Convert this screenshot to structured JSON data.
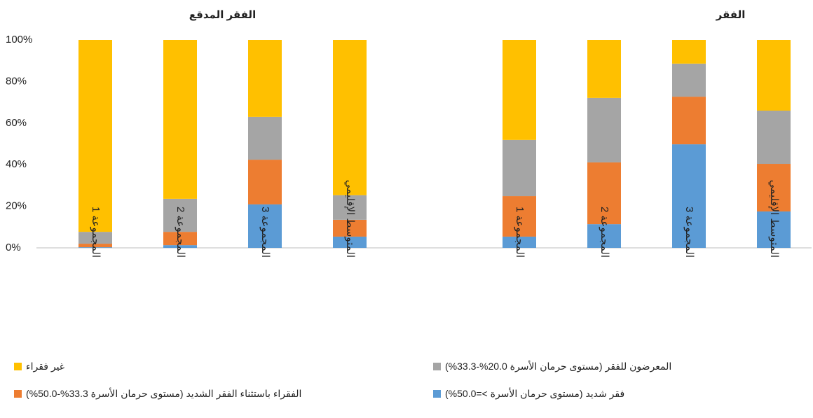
{
  "chart_data": [
    {
      "type": "stacked_bar",
      "title": "الفقر المدقع",
      "categories": [
        "المجموعة 1",
        "المجموعة 2",
        "المجموعة 3",
        "المتوسط الإقليمي"
      ],
      "series": [
        {
          "name": "فقر شديد (مستوى حرمان الأسرة >=50.0%)",
          "color": "#5b9bd5",
          "values": [
            0.3,
            1.3,
            20.9,
            5.4
          ]
        },
        {
          "name": "الفقراء باستثناء الفقر الشديد (مستوى حرمان الأسرة 33.3%-50.0%)",
          "color": "#ed7d31",
          "values": [
            1.7,
            6.4,
            21.5,
            8.1
          ]
        },
        {
          "name": "المعرضون للفقر (مستوى حرمان الأسرة 20.0%-33.3%)",
          "color": "#a5a5a5",
          "values": [
            5.7,
            15.9,
            20.6,
            11.8
          ]
        },
        {
          "name": "غير فقراء",
          "color": "#ffc000",
          "values": [
            92.3,
            76.4,
            37,
            74.7
          ]
        }
      ],
      "ylim": [
        0,
        100
      ],
      "yticks": [
        {
          "value": 0,
          "label": "0%"
        },
        {
          "value": 20,
          "label": "20%"
        },
        {
          "value": 40,
          "label": "40%"
        },
        {
          "value": 60,
          "label": "60%"
        },
        {
          "value": 80,
          "label": "80%"
        },
        {
          "value": 100,
          "label": "100%"
        }
      ]
    },
    {
      "type": "stacked_bar",
      "title": "الفقر",
      "categories": [
        "المجموعة 1",
        "المجموعة 2",
        "المجموعة 3",
        "المتوسط الإقليمي"
      ],
      "series": [
        {
          "name": "فقر شديد (مستوى حرمان الأسرة >=50.0%)",
          "color": "#5b9bd5",
          "values": [
            5.4,
            11.4,
            49.8,
            17.5
          ]
        },
        {
          "name": "الفقراء باستثناء الفقر الشديد (مستوى حرمان الأسرة 33.3%-50.0%)",
          "color": "#ed7d31",
          "values": [
            19.5,
            29.7,
            22.9,
            22.9
          ]
        },
        {
          "name": "المعرضون للفقر (مستوى حرمان الأسرة 20.0%-33.3%)",
          "color": "#a5a5a5",
          "values": [
            27,
            31,
            15.9,
            25.6
          ]
        },
        {
          "name": "غير فقراء",
          "color": "#ffc000",
          "values": [
            48.1,
            27.9,
            11.4,
            34
          ]
        }
      ],
      "ylim": [
        0,
        100
      ]
    }
  ]
}
